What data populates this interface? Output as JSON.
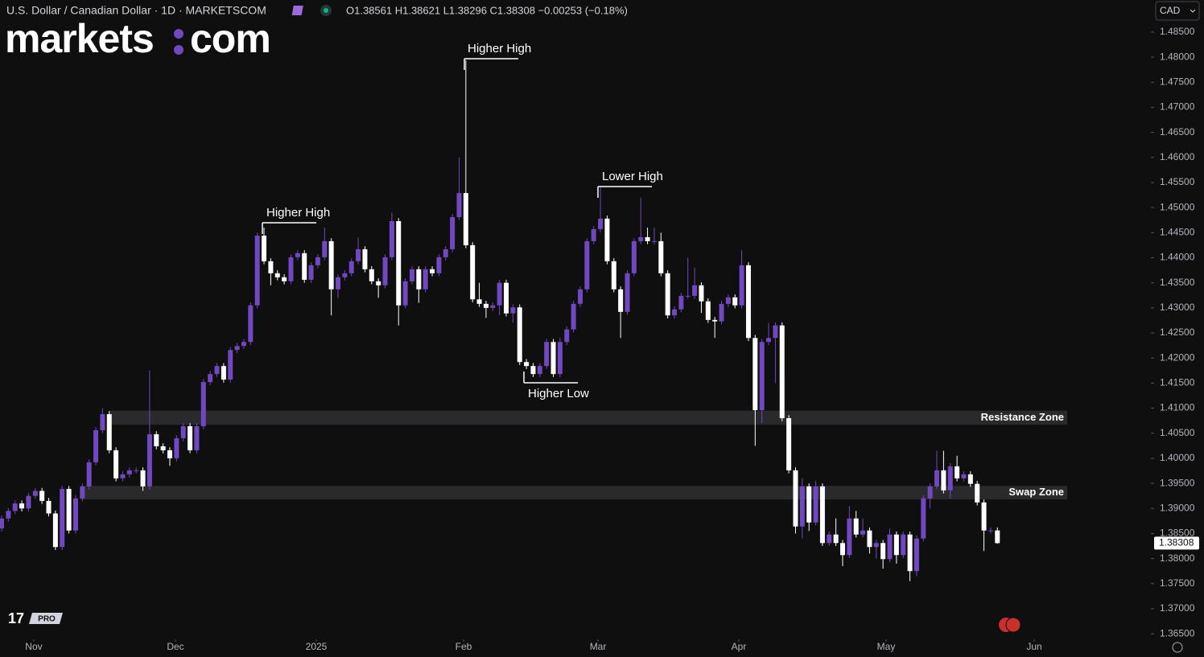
{
  "chart_data": {
    "type": "candlestick",
    "title": "U.S. Dollar / Canadian Dollar · 1D · MARKETSCOM",
    "ohlc_text": "O1.38561 H1.38621 L1.38296 C1.38308 −0.00253 (−0.18%)",
    "logo": [
      "markets",
      "com"
    ],
    "currency": "CAD",
    "badge": "PRO",
    "up_color": "#7048c0",
    "down_color": "#ffffff",
    "open": [
      1.386,
      1.388,
      1.3895,
      1.391,
      1.39,
      1.3925,
      1.3935,
      1.3915,
      1.389,
      1.3823,
      1.3939,
      1.3856,
      1.392,
      1.3944,
      1.3992,
      1.4056,
      1.4088,
      1.4016,
      1.396,
      1.3968,
      1.3976,
      1.3976,
      1.3944,
      1.4048,
      1.4024,
      1.4016,
      1.4,
      1.404,
      1.4064,
      1.4016,
      1.4064,
      1.4152,
      1.4168,
      1.4184,
      1.4157,
      1.4216,
      1.4224,
      1.4232,
      1.4305,
      1.4444,
      1.4393,
      1.4369,
      1.4361,
      1.4353,
      1.4401,
      1.4409,
      1.4356,
      1.4385,
      1.4401,
      1.4433,
      1.4337,
      1.4361,
      1.4369,
      1.4393,
      1.4417,
      1.4377,
      1.4353,
      1.4345,
      1.4401,
      1.4473,
      1.4305,
      1.4353,
      1.4377,
      1.4337,
      1.4377,
      1.4369,
      1.4401,
      1.4417,
      1.4481,
      1.4529,
      1.4425,
      1.4317,
      1.4308,
      1.43,
      1.4305,
      1.435,
      1.4289,
      1.4301,
      1.4192,
      1.4184,
      1.4168,
      1.4184,
      1.4232,
      1.4168,
      1.4232,
      1.4257,
      1.4308,
      1.4337,
      1.4433,
      1.4457,
      1.4478,
      1.4393,
      1.4337,
      1.4292,
      1.4369,
      1.4433,
      1.4441,
      1.4433,
      1.4433,
      1.4369,
      1.4285,
      1.4297,
      1.4324,
      1.4324,
      1.4345,
      1.4313,
      1.4276,
      1.4273,
      1.4308,
      1.4321,
      1.4305,
      1.4385,
      1.424,
      1.4096,
      1.4232,
      1.424,
      1.4265,
      1.408,
      1.3976,
      1.3864,
      1.3944,
      1.3872,
      1.3944,
      1.3831,
      1.3848,
      1.3831,
      1.3807,
      1.388,
      1.3848,
      1.3856,
      1.3823,
      1.3831,
      1.3799,
      1.3848,
      1.3807,
      1.3848,
      1.3775,
      1.384,
      1.392,
      1.3944,
      1.3976,
      1.3936,
      1.3984,
      1.396,
      1.3968,
      1.3949,
      1.3912,
      1.3856,
      1.38561
    ],
    "high": [
      1.3886,
      1.3901,
      1.3916,
      1.3916,
      1.3931,
      1.3941,
      1.3941,
      1.3921,
      1.3896,
      1.3945,
      1.3945,
      1.3926,
      1.395,
      1.3998,
      1.4062,
      1.41,
      1.4094,
      1.4022,
      1.3974,
      1.3982,
      1.3982,
      1.3982,
      1.4175,
      1.4054,
      1.403,
      1.4022,
      1.4046,
      1.407,
      1.407,
      1.407,
      1.4158,
      1.4174,
      1.419,
      1.419,
      1.4222,
      1.423,
      1.4238,
      1.4311,
      1.445,
      1.446,
      1.4399,
      1.4375,
      1.4367,
      1.4407,
      1.4415,
      1.4415,
      1.4391,
      1.4407,
      1.446,
      1.4439,
      1.4367,
      1.4375,
      1.4399,
      1.444,
      1.4423,
      1.4383,
      1.4359,
      1.4407,
      1.449,
      1.4479,
      1.4359,
      1.4383,
      1.4383,
      1.4383,
      1.4383,
      1.4407,
      1.4423,
      1.4487,
      1.46,
      1.4794,
      1.4431,
      1.435,
      1.4314,
      1.4311,
      1.4356,
      1.4356,
      1.4307,
      1.4307,
      1.4198,
      1.419,
      1.419,
      1.4238,
      1.4238,
      1.424,
      1.4263,
      1.4314,
      1.4343,
      1.4439,
      1.4463,
      1.454,
      1.4484,
      1.4399,
      1.4343,
      1.4375,
      1.4439,
      1.452,
      1.446,
      1.446,
      1.445,
      1.4375,
      1.4303,
      1.433,
      1.44,
      1.438,
      1.4351,
      1.4319,
      1.4282,
      1.4314,
      1.4327,
      1.4327,
      1.4415,
      1.4391,
      1.4246,
      1.4238,
      1.427,
      1.4271,
      1.4271,
      1.4086,
      1.3982,
      1.396,
      1.395,
      1.3955,
      1.395,
      1.3854,
      1.388,
      1.3837,
      1.3905,
      1.3895,
      1.388,
      1.3862,
      1.3837,
      1.3837,
      1.386,
      1.3854,
      1.3854,
      1.3854,
      1.3846,
      1.3926,
      1.395,
      1.4015,
      1.4015,
      1.399,
      1.4005,
      1.3974,
      1.3974,
      1.3955,
      1.3918,
      1.3862,
      1.38621
    ],
    "low": [
      1.3854,
      1.3874,
      1.3889,
      1.3894,
      1.3894,
      1.3919,
      1.3909,
      1.3884,
      1.3817,
      1.3817,
      1.385,
      1.385,
      1.3914,
      1.3938,
      1.3986,
      1.405,
      1.401,
      1.3954,
      1.3954,
      1.3962,
      1.397,
      1.3935,
      1.3938,
      1.4018,
      1.401,
      1.3985,
      1.3994,
      1.4034,
      1.401,
      1.401,
      1.4058,
      1.4146,
      1.4162,
      1.4151,
      1.4151,
      1.421,
      1.4218,
      1.4226,
      1.4299,
      1.4387,
      1.4345,
      1.4355,
      1.4347,
      1.4347,
      1.4395,
      1.435,
      1.435,
      1.4379,
      1.4395,
      1.4285,
      1.432,
      1.4355,
      1.4363,
      1.4387,
      1.4371,
      1.4347,
      1.432,
      1.4339,
      1.4395,
      1.4265,
      1.4299,
      1.4347,
      1.431,
      1.4331,
      1.4363,
      1.4363,
      1.4395,
      1.4411,
      1.4475,
      1.4419,
      1.4311,
      1.4302,
      1.428,
      1.4294,
      1.4285,
      1.4283,
      1.427,
      1.4186,
      1.4178,
      1.4162,
      1.4162,
      1.4178,
      1.4162,
      1.4162,
      1.4226,
      1.4251,
      1.4302,
      1.4331,
      1.4427,
      1.4451,
      1.4387,
      1.4331,
      1.424,
      1.4286,
      1.4363,
      1.4427,
      1.4427,
      1.4427,
      1.4363,
      1.4279,
      1.4279,
      1.4291,
      1.4318,
      1.4318,
      1.429,
      1.427,
      1.424,
      1.4267,
      1.4302,
      1.4299,
      1.4299,
      1.4234,
      1.4025,
      1.407,
      1.4226,
      1.415,
      1.4074,
      1.397,
      1.385,
      1.384,
      1.3855,
      1.3866,
      1.3825,
      1.3825,
      1.3825,
      1.3785,
      1.3801,
      1.3842,
      1.3842,
      1.381,
      1.38,
      1.378,
      1.3793,
      1.379,
      1.3801,
      1.3755,
      1.3765,
      1.3834,
      1.39,
      1.3938,
      1.393,
      1.392,
      1.3954,
      1.3954,
      1.3943,
      1.3906,
      1.3815,
      1.385,
      1.38296
    ],
    "close": [
      1.388,
      1.3895,
      1.391,
      1.39,
      1.3925,
      1.3935,
      1.3915,
      1.389,
      1.3823,
      1.3939,
      1.3856,
      1.392,
      1.3944,
      1.3992,
      1.4056,
      1.4088,
      1.4016,
      1.396,
      1.3968,
      1.3976,
      1.3976,
      1.3944,
      1.4048,
      1.4024,
      1.4016,
      1.4,
      1.404,
      1.4064,
      1.4016,
      1.4064,
      1.4152,
      1.4168,
      1.4184,
      1.4157,
      1.4216,
      1.4224,
      1.4232,
      1.4305,
      1.4444,
      1.4393,
      1.4369,
      1.4361,
      1.4353,
      1.4401,
      1.4409,
      1.4356,
      1.4385,
      1.4401,
      1.4433,
      1.4337,
      1.4361,
      1.4369,
      1.4393,
      1.4417,
      1.4377,
      1.4353,
      1.4345,
      1.4401,
      1.4473,
      1.4305,
      1.4353,
      1.4377,
      1.4337,
      1.4377,
      1.4369,
      1.4401,
      1.4417,
      1.4481,
      1.4529,
      1.4425,
      1.4317,
      1.4308,
      1.43,
      1.4305,
      1.435,
      1.4289,
      1.4301,
      1.4192,
      1.4184,
      1.4168,
      1.4184,
      1.4232,
      1.4168,
      1.4232,
      1.4257,
      1.4308,
      1.4337,
      1.4433,
      1.4457,
      1.4478,
      1.4393,
      1.4337,
      1.4292,
      1.4369,
      1.4433,
      1.4441,
      1.4433,
      1.4433,
      1.4369,
      1.4285,
      1.4297,
      1.4324,
      1.4324,
      1.4345,
      1.4313,
      1.4276,
      1.4273,
      1.4308,
      1.4321,
      1.4305,
      1.4385,
      1.424,
      1.4096,
      1.4232,
      1.424,
      1.4265,
      1.408,
      1.3976,
      1.3864,
      1.3944,
      1.3872,
      1.3944,
      1.3831,
      1.3848,
      1.3831,
      1.3807,
      1.388,
      1.3848,
      1.3856,
      1.3823,
      1.3831,
      1.3799,
      1.3848,
      1.3807,
      1.3848,
      1.3775,
      1.384,
      1.392,
      1.3944,
      1.3976,
      1.3936,
      1.3984,
      1.396,
      1.3968,
      1.3949,
      1.3912,
      1.3856,
      1.38561,
      1.38308
    ],
    "ylim": [
      1.3639,
      1.4914
    ],
    "yticks": [
      {
        "value": 1.485,
        "label": "1.48500"
      },
      {
        "value": 1.48,
        "label": "1.48000"
      },
      {
        "value": 1.475,
        "label": "1.47500"
      },
      {
        "value": 1.47,
        "label": "1.47000"
      },
      {
        "value": 1.465,
        "label": "1.46500"
      },
      {
        "value": 1.46,
        "label": "1.46000"
      },
      {
        "value": 1.455,
        "label": "1.45500"
      },
      {
        "value": 1.45,
        "label": "1.45000"
      },
      {
        "value": 1.445,
        "label": "1.44500"
      },
      {
        "value": 1.44,
        "label": "1.44000"
      },
      {
        "value": 1.435,
        "label": "1.43500"
      },
      {
        "value": 1.43,
        "label": "1.43000"
      },
      {
        "value": 1.425,
        "label": "1.42500"
      },
      {
        "value": 1.42,
        "label": "1.42000"
      },
      {
        "value": 1.415,
        "label": "1.41500"
      },
      {
        "value": 1.41,
        "label": "1.41000"
      },
      {
        "value": 1.405,
        "label": "1.40500"
      },
      {
        "value": 1.4,
        "label": "1.40000"
      },
      {
        "value": 1.395,
        "label": "1.39500"
      },
      {
        "value": 1.39,
        "label": "1.39000"
      },
      {
        "value": 1.385,
        "label": "1.38500"
      },
      {
        "value": 1.38,
        "label": "1.38000"
      },
      {
        "value": 1.375,
        "label": "1.37500"
      },
      {
        "value": 1.37,
        "label": "1.37000"
      },
      {
        "value": 1.365,
        "label": "1.36500"
      }
    ],
    "xticks": [
      {
        "value": 4.78,
        "label": "Nov"
      },
      {
        "value": 25.84,
        "label": "Dec"
      },
      {
        "value": 46.77,
        "label": "2025"
      },
      {
        "value": 68.66,
        "label": "Feb"
      },
      {
        "value": 88.64,
        "label": "Mar"
      },
      {
        "value": 109.57,
        "label": "Apr"
      },
      {
        "value": 131.46,
        "label": "May"
      },
      {
        "value": 153.47,
        "label": "Jun"
      }
    ],
    "zones": [
      {
        "label": "Resistance Zone",
        "low": 1.4067,
        "high": 1.4095
      },
      {
        "label": "Swap Zone",
        "low": 1.3918,
        "high": 1.3945
      }
    ],
    "annotations": [
      "Higher High",
      "Higher High",
      "Lower High",
      "Higher Low"
    ]
  }
}
